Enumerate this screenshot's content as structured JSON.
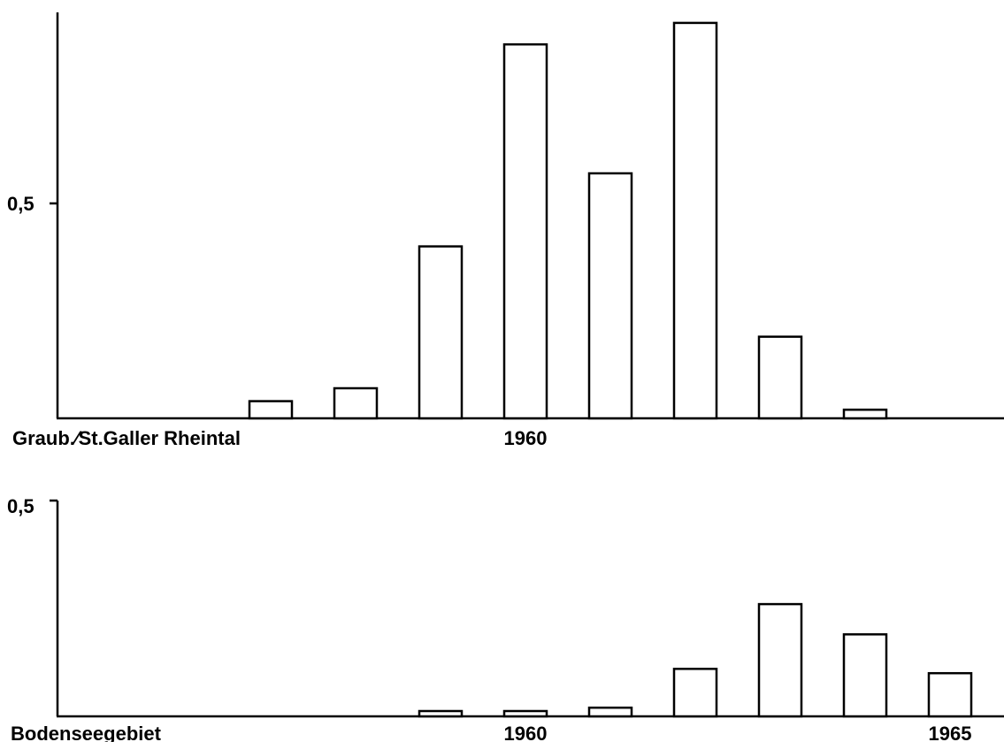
{
  "chart_data": [
    {
      "type": "bar",
      "region_label": "Graub.⁄St.Galler Rheintal",
      "y_tick_label": "0,5",
      "y_tick_value": 0.5,
      "ylim": [
        0,
        0.92
      ],
      "year_ticks": [
        {
          "label": "1960",
          "year": 1960
        }
      ],
      "years": [
        1955,
        1956,
        1957,
        1958,
        1959,
        1960,
        1961,
        1962,
        1963,
        1964,
        1965,
        1966
      ],
      "values": [
        0,
        0,
        0.04,
        0.07,
        0.4,
        0.87,
        0.57,
        0.92,
        0.19,
        0.02,
        0,
        0
      ],
      "grid": false
    },
    {
      "type": "bar",
      "region_label": "Bodenseegebiet",
      "y_tick_label": "0,5",
      "y_tick_value": 0.5,
      "ylim": [
        0,
        0.5
      ],
      "year_ticks": [
        {
          "label": "1960",
          "year": 1960
        },
        {
          "label": "1965",
          "year": 1965
        }
      ],
      "years": [
        1955,
        1956,
        1957,
        1958,
        1959,
        1960,
        1961,
        1962,
        1963,
        1964,
        1965,
        1966
      ],
      "values": [
        0,
        0,
        0,
        0,
        0.01,
        0.01,
        0.02,
        0.11,
        0.26,
        0.19,
        0.1,
        0.015
      ],
      "grid": false
    }
  ]
}
